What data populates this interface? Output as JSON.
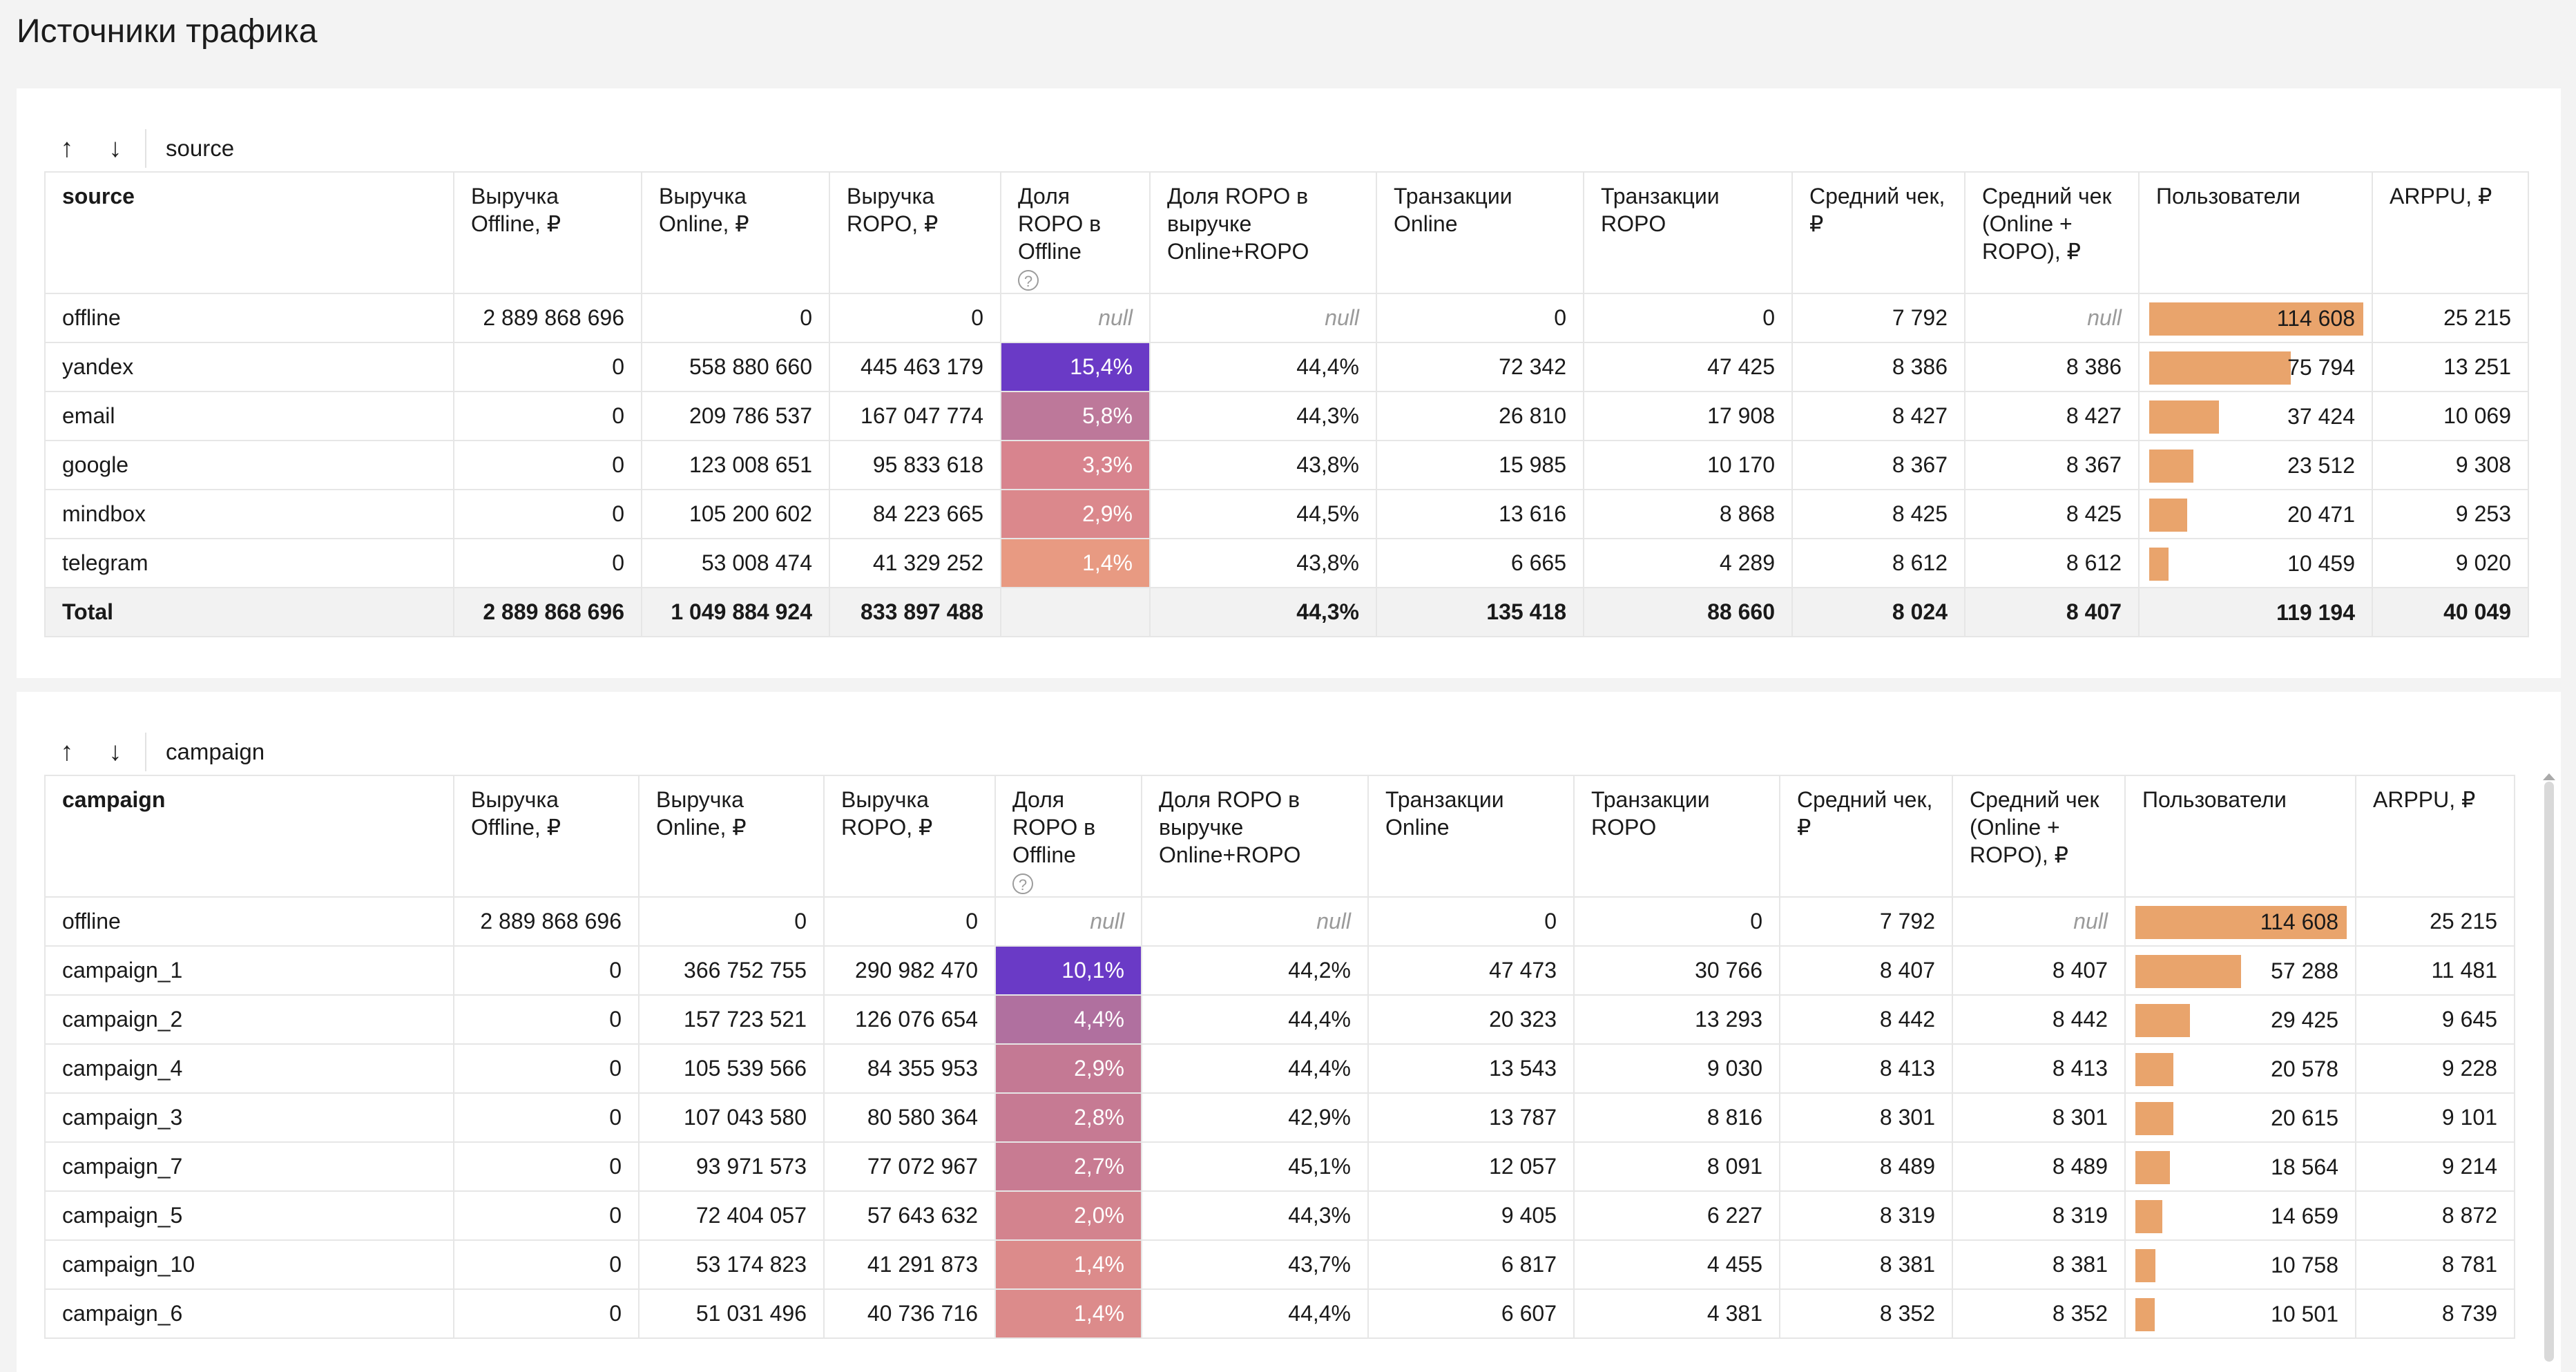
{
  "page_title": "Источники трафика",
  "colors": {
    "bar": "#e9a46c",
    "heat_high": "#6a3ac6",
    "heat_mid": "#bd789a",
    "heat_low": "#e89a82"
  },
  "icons": {
    "sort_asc": "↑",
    "sort_desc": "↓",
    "help": "?"
  },
  "columns": [
    "Выручка Offline, ₽",
    "Выручка Online, ₽",
    "Выручка ROPO, ₽",
    "Доля ROPO в Offline",
    "Доля ROPO в выручке Online+ROPO",
    "Транзакции Online",
    "Транзакции ROPO",
    "Средний чек, ₽",
    "Средний чек (Online + ROPO), ₽",
    "Пользователи",
    "ARPPU, ₽"
  ],
  "tables": [
    {
      "group_label": "source",
      "first_header": "source",
      "users_max": 114608,
      "rows": [
        {
          "name": "offline",
          "c": [
            "2 889 868 696",
            "0",
            "0",
            "null",
            "null",
            "0",
            "0",
            "7 792",
            "null"
          ],
          "users": "114 608",
          "users_n": 114608,
          "arppu": "25 215",
          "share_n": null,
          "heat": ""
        },
        {
          "name": "yandex",
          "c": [
            "0",
            "558 880 660",
            "445 463 179",
            "15,4%",
            "44,4%",
            "72 342",
            "47 425",
            "8 386",
            "8 386"
          ],
          "users": "75 794",
          "users_n": 75794,
          "arppu": "13 251",
          "share_n": 15.4,
          "heat": "#6a3ac6"
        },
        {
          "name": "email",
          "c": [
            "0",
            "209 786 537",
            "167 047 774",
            "5,8%",
            "44,3%",
            "26 810",
            "17 908",
            "8 427",
            "8 427"
          ],
          "users": "37 424",
          "users_n": 37424,
          "arppu": "10 069",
          "share_n": 5.8,
          "heat": "#bd789a"
        },
        {
          "name": "google",
          "c": [
            "0",
            "123 008 651",
            "95 833 618",
            "3,3%",
            "43,8%",
            "15 985",
            "10 170",
            "8 367",
            "8 367"
          ],
          "users": "23 512",
          "users_n": 23512,
          "arppu": "9 308",
          "share_n": 3.3,
          "heat": "#d8848e"
        },
        {
          "name": "mindbox",
          "c": [
            "0",
            "105 200 602",
            "84 223 665",
            "2,9%",
            "44,5%",
            "13 616",
            "8 868",
            "8 425",
            "8 425"
          ],
          "users": "20 471",
          "users_n": 20471,
          "arppu": "9 253",
          "share_n": 2.9,
          "heat": "#db888c"
        },
        {
          "name": "telegram",
          "c": [
            "0",
            "53 008 474",
            "41 329 252",
            "1,4%",
            "43,8%",
            "6 665",
            "4 289",
            "8 612",
            "8 612"
          ],
          "users": "10 459",
          "users_n": 10459,
          "arppu": "9 020",
          "share_n": 1.4,
          "heat": "#e89a82"
        }
      ],
      "total": {
        "name": "Total",
        "c": [
          "2 889 868 696",
          "1 049 884 924",
          "833 897 488",
          "",
          "44,3%",
          "135 418",
          "88 660",
          "8 024",
          "8 407"
        ],
        "users": "119 194",
        "arppu": "40 049"
      }
    },
    {
      "group_label": "campaign",
      "first_header": "campaign",
      "users_max": 114608,
      "rows": [
        {
          "name": "offline",
          "c": [
            "2 889 868 696",
            "0",
            "0",
            "null",
            "null",
            "0",
            "0",
            "7 792",
            "null"
          ],
          "users": "114 608",
          "users_n": 114608,
          "arppu": "25 215",
          "share_n": null,
          "heat": ""
        },
        {
          "name": "campaign_1",
          "c": [
            "0",
            "366 752 755",
            "290 982 470",
            "10,1%",
            "44,2%",
            "47 473",
            "30 766",
            "8 407",
            "8 407"
          ],
          "users": "57 288",
          "users_n": 57288,
          "arppu": "11 481",
          "share_n": 10.1,
          "heat": "#6a3ac6"
        },
        {
          "name": "campaign_2",
          "c": [
            "0",
            "157 723 521",
            "126 076 654",
            "4,4%",
            "44,4%",
            "20 323",
            "13 293",
            "8 442",
            "8 442"
          ],
          "users": "29 425",
          "users_n": 29425,
          "arppu": "9 645",
          "share_n": 4.4,
          "heat": "#b0709f"
        },
        {
          "name": "campaign_4",
          "c": [
            "0",
            "105 539 566",
            "84 355 953",
            "2,9%",
            "44,4%",
            "13 543",
            "9 030",
            "8 413",
            "8 413"
          ],
          "users": "20 578",
          "users_n": 20578,
          "arppu": "9 228",
          "share_n": 2.9,
          "heat": "#c47994"
        },
        {
          "name": "campaign_3",
          "c": [
            "0",
            "107 043 580",
            "80 580 364",
            "2,8%",
            "42,9%",
            "13 787",
            "8 816",
            "8 301",
            "8 301"
          ],
          "users": "20 615",
          "users_n": 20615,
          "arppu": "9 101",
          "share_n": 2.8,
          "heat": "#c67a93"
        },
        {
          "name": "campaign_7",
          "c": [
            "0",
            "93 971 573",
            "77 072 967",
            "2,7%",
            "45,1%",
            "12 057",
            "8 091",
            "8 489",
            "8 489"
          ],
          "users": "18 564",
          "users_n": 18564,
          "arppu": "9 214",
          "share_n": 2.7,
          "heat": "#c87b92"
        },
        {
          "name": "campaign_5",
          "c": [
            "0",
            "72 404 057",
            "57 643 632",
            "2,0%",
            "44,3%",
            "9 405",
            "6 227",
            "8 319",
            "8 319"
          ],
          "users": "14 659",
          "users_n": 14659,
          "arppu": "8 872",
          "share_n": 2.0,
          "heat": "#d3838e"
        },
        {
          "name": "campaign_10",
          "c": [
            "0",
            "53 174 823",
            "41 291 873",
            "1,4%",
            "43,7%",
            "6 817",
            "4 455",
            "8 381",
            "8 381"
          ],
          "users": "10 758",
          "users_n": 10758,
          "arppu": "8 781",
          "share_n": 1.4,
          "heat": "#dc8b8b"
        },
        {
          "name": "campaign_6",
          "c": [
            "0",
            "51 031 496",
            "40 736 716",
            "1,4%",
            "44,4%",
            "6 607",
            "4 381",
            "8 352",
            "8 352"
          ],
          "users": "10 501",
          "users_n": 10501,
          "arppu": "8 739",
          "share_n": 1.4,
          "heat": "#dc8b8b"
        }
      ]
    }
  ]
}
